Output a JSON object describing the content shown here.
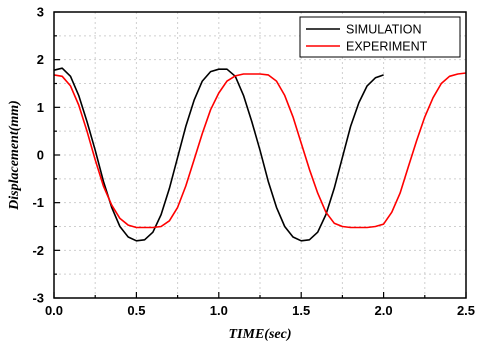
{
  "chart_data": {
    "type": "line",
    "xlabel": "TIME(sec)",
    "ylabel": "Displacement(mm)",
    "xlim": [
      0.0,
      2.5
    ],
    "ylim": [
      -3,
      3
    ],
    "x_ticks": [
      "0.0",
      "0.5",
      "1.0",
      "1.5",
      "2.0",
      "2.5"
    ],
    "y_ticks": [
      "3",
      "2",
      "1",
      "0",
      "-1",
      "-2",
      "-3"
    ],
    "grid": true,
    "legend_position": "top-right",
    "series": [
      {
        "name": "SIMULATION",
        "color": "#000000",
        "x": [
          0.0,
          0.05,
          0.1,
          0.15,
          0.2,
          0.25,
          0.3,
          0.35,
          0.4,
          0.45,
          0.5,
          0.55,
          0.6,
          0.65,
          0.7,
          0.75,
          0.8,
          0.85,
          0.9,
          0.95,
          1.0,
          1.05,
          1.1,
          1.15,
          1.2,
          1.25,
          1.3,
          1.35,
          1.4,
          1.45,
          1.5,
          1.55,
          1.6,
          1.65,
          1.7,
          1.75,
          1.8,
          1.85,
          1.9,
          1.95,
          2.0
        ],
        "y": [
          1.78,
          1.82,
          1.65,
          1.25,
          0.7,
          0.1,
          -0.55,
          -1.1,
          -1.5,
          -1.72,
          -1.8,
          -1.78,
          -1.62,
          -1.25,
          -0.7,
          -0.05,
          0.6,
          1.15,
          1.55,
          1.75,
          1.8,
          1.8,
          1.65,
          1.25,
          0.7,
          0.1,
          -0.55,
          -1.1,
          -1.5,
          -1.72,
          -1.8,
          -1.78,
          -1.62,
          -1.25,
          -0.7,
          -0.05,
          0.6,
          1.1,
          1.45,
          1.62,
          1.68
        ]
      },
      {
        "name": "EXPERIMENT",
        "color": "#ff0000",
        "x": [
          0.0,
          0.05,
          0.1,
          0.15,
          0.2,
          0.25,
          0.3,
          0.35,
          0.4,
          0.45,
          0.5,
          0.55,
          0.6,
          0.65,
          0.7,
          0.75,
          0.8,
          0.85,
          0.9,
          0.95,
          1.0,
          1.05,
          1.1,
          1.15,
          1.2,
          1.25,
          1.3,
          1.35,
          1.4,
          1.45,
          1.5,
          1.55,
          1.6,
          1.65,
          1.7,
          1.75,
          1.8,
          1.85,
          1.9,
          1.95,
          2.0,
          2.05,
          2.1,
          2.15,
          2.2,
          2.25,
          2.3,
          2.35,
          2.4,
          2.45,
          2.5
        ],
        "y": [
          1.68,
          1.65,
          1.45,
          1.05,
          0.5,
          -0.1,
          -0.65,
          -1.05,
          -1.33,
          -1.47,
          -1.52,
          -1.52,
          -1.52,
          -1.5,
          -1.38,
          -1.1,
          -0.65,
          -0.1,
          0.45,
          0.95,
          1.3,
          1.55,
          1.66,
          1.7,
          1.7,
          1.7,
          1.68,
          1.55,
          1.25,
          0.8,
          0.25,
          -0.3,
          -0.8,
          -1.2,
          -1.43,
          -1.5,
          -1.52,
          -1.52,
          -1.52,
          -1.5,
          -1.45,
          -1.2,
          -0.8,
          -0.25,
          0.3,
          0.8,
          1.2,
          1.5,
          1.65,
          1.7,
          1.72
        ]
      }
    ]
  }
}
